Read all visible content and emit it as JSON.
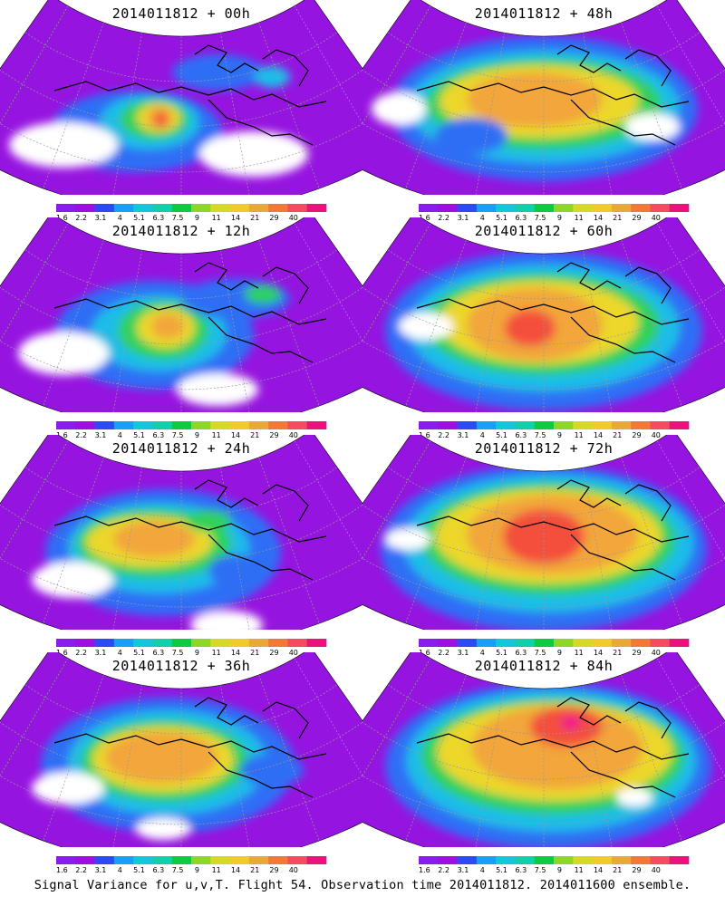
{
  "figure": {
    "caption": "Signal Variance for u,v,T. Flight 54. Observation time 2014011812. 2014011600 ensemble."
  },
  "panels": [
    {
      "id": "p00",
      "title": "2014011812 + 00h",
      "lead_hours": 0
    },
    {
      "id": "p12",
      "title": "2014011812 + 12h",
      "lead_hours": 12
    },
    {
      "id": "p24",
      "title": "2014011812 + 24h",
      "lead_hours": 24
    },
    {
      "id": "p36",
      "title": "2014011812 + 36h",
      "lead_hours": 36
    },
    {
      "id": "p48",
      "title": "2014011812 + 48h",
      "lead_hours": 48
    },
    {
      "id": "p60",
      "title": "2014011812 + 60h",
      "lead_hours": 60
    },
    {
      "id": "p72",
      "title": "2014011812 + 72h",
      "lead_hours": 72
    },
    {
      "id": "p84",
      "title": "2014011812 + 84h",
      "lead_hours": 84
    }
  ],
  "colorbar": {
    "ticks": [
      "1.6",
      "2.2",
      "3.1",
      "4",
      "5.1",
      "6.3",
      "7.5",
      "9",
      "11",
      "14",
      "21",
      "29",
      "40"
    ],
    "colors": [
      "#8a1ee8",
      "#9d10dc",
      "#2e4bf0",
      "#1b9ef4",
      "#14c7d8",
      "#14ceaa",
      "#12c840",
      "#8fd62a",
      "#d4d82a",
      "#f0c830",
      "#eaa83a",
      "#f07838",
      "#f24c60",
      "#f0107c"
    ],
    "below_threshold_color": "#ffffff"
  },
  "map": {
    "projection": "polar stereographic sector",
    "fill_colors": {
      "purple": "#9614e0",
      "blue": "#2f6ef5",
      "cyan": "#1fbde8",
      "green": "#2fd25a",
      "yellowgreen": "#b7df2b",
      "yellow": "#ecd72c",
      "orange": "#f2a63a",
      "red": "#f4503e",
      "magenta": "#f01a8a"
    },
    "coastline_color": "#000000",
    "graticule_color": "#9a9a9a"
  }
}
